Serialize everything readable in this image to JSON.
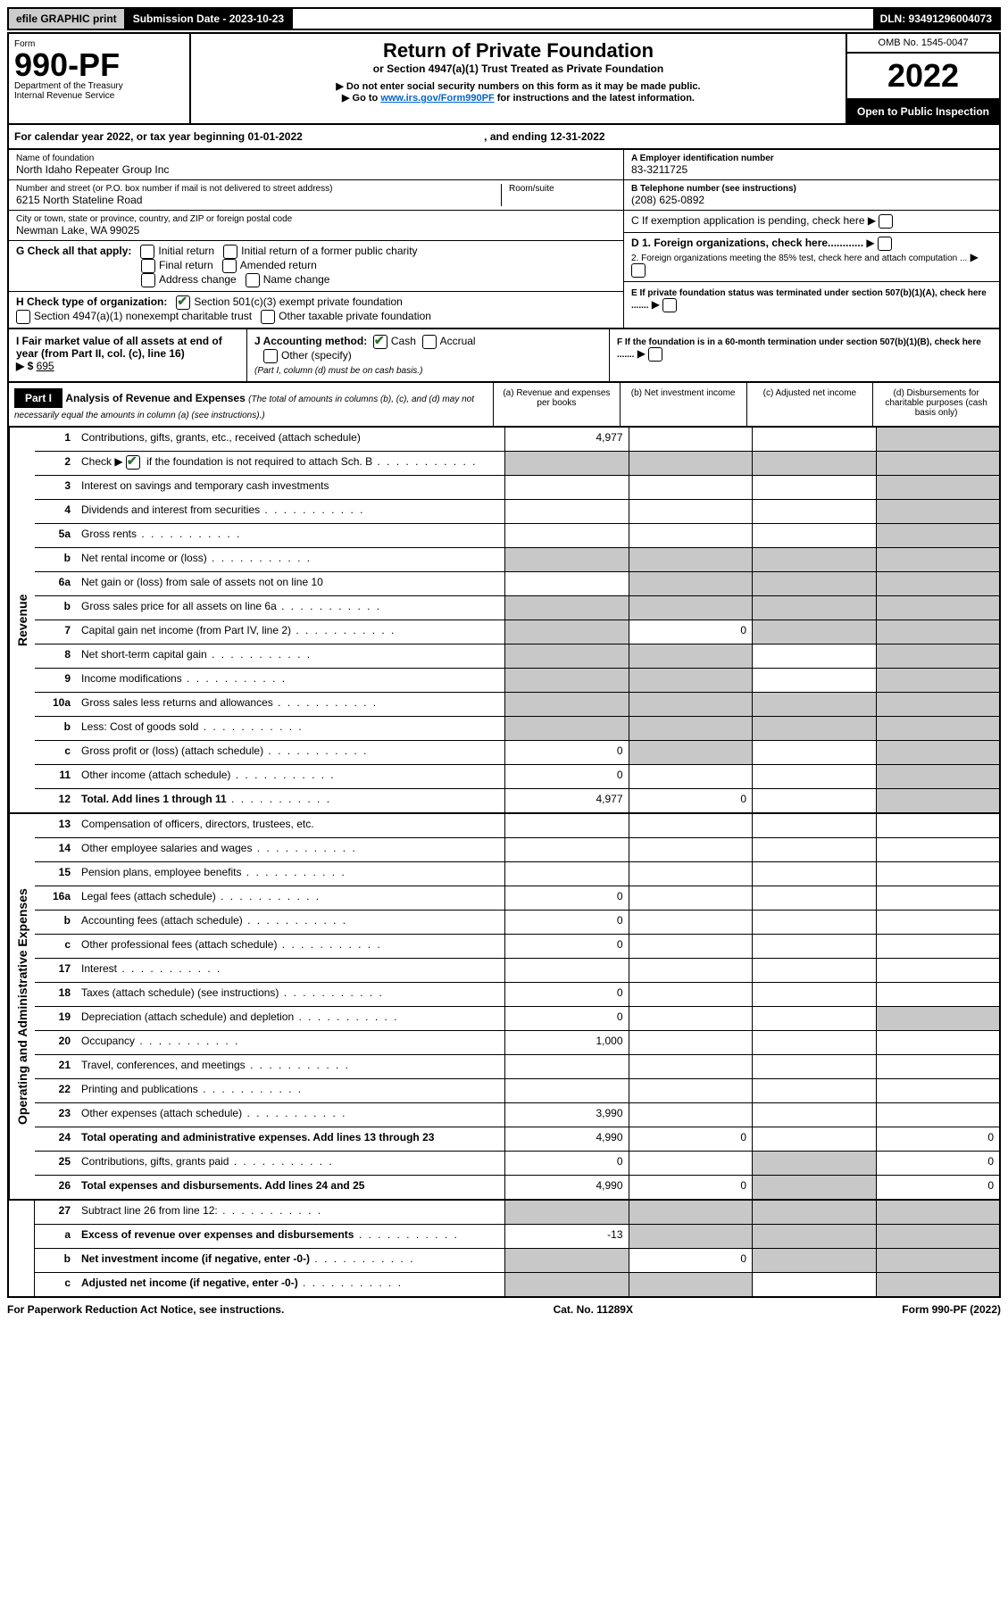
{
  "top_bar": {
    "efile": "efile GRAPHIC print",
    "submission_date_label": "Submission Date - 2023-10-23",
    "dln": "DLN: 93491296004073"
  },
  "header": {
    "form_label": "Form",
    "form_number": "990-PF",
    "dept": "Department of the Treasury",
    "irs": "Internal Revenue Service",
    "title": "Return of Private Foundation",
    "subtitle": "or Section 4947(a)(1) Trust Treated as Private Foundation",
    "note1": "▶ Do not enter social security numbers on this form as it may be made public.",
    "note2_prefix": "▶ Go to ",
    "note2_link": "www.irs.gov/Form990PF",
    "note2_suffix": " for instructions and the latest information.",
    "omb": "OMB No. 1545-0047",
    "tax_year": "2022",
    "open_inspection": "Open to Public Inspection"
  },
  "calendar_year": "For calendar year 2022, or tax year beginning 01-01-2022",
  "calendar_end": ", and ending 12-31-2022",
  "entity": {
    "name_label": "Name of foundation",
    "name": "North Idaho Repeater Group Inc",
    "street_label": "Number and street (or P.O. box number if mail is not delivered to street address)",
    "street": "6215 North Stateline Road",
    "room_label": "Room/suite",
    "city_label": "City or town, state or province, country, and ZIP or foreign postal code",
    "city": "Newman Lake, WA  99025",
    "ein_label": "A Employer identification number",
    "ein": "83-3211725",
    "phone_label": "B Telephone number (see instructions)",
    "phone": "(208) 625-0892",
    "c_label": "C If exemption application is pending, check here",
    "d1": "D 1. Foreign organizations, check here............",
    "d2": "2. Foreign organizations meeting the 85% test, check here and attach computation ...",
    "e": "E If private foundation status was terminated under section 507(b)(1)(A), check here .......",
    "f": "F If the foundation is in a 60-month termination under section 507(b)(1)(B), check here .......",
    "g_label": "G Check all that apply:",
    "g_opts": [
      "Initial return",
      "Initial return of a former public charity",
      "Final return",
      "Amended return",
      "Address change",
      "Name change"
    ],
    "h_label": "H Check type of organization:",
    "h_opt1": "Section 501(c)(3) exempt private foundation",
    "h_opt2": "Section 4947(a)(1) nonexempt charitable trust",
    "h_opt3": "Other taxable private foundation",
    "i_label": "I Fair market value of all assets at end of year (from Part II, col. (c), line 16)",
    "i_value": "695",
    "j_label": "J Accounting method:",
    "j_cash": "Cash",
    "j_accrual": "Accrual",
    "j_other": "Other (specify)",
    "j_note": "(Part I, column (d) must be on cash basis.)"
  },
  "part1": {
    "label": "Part I",
    "title": "Analysis of Revenue and Expenses",
    "title_note": "(The total of amounts in columns (b), (c), and (d) may not necessarily equal the amounts in column (a) (see instructions).)",
    "col_a": "(a) Revenue and expenses per books",
    "col_b": "(b) Net investment income",
    "col_c": "(c) Adjusted net income",
    "col_d": "(d) Disbursements for charitable purposes (cash basis only)"
  },
  "revenue_side": "Revenue",
  "expense_side": "Operating and Administrative Expenses",
  "rows": {
    "r1": {
      "num": "1",
      "label": "Contributions, gifts, grants, etc., received (attach schedule)",
      "a": "4,977"
    },
    "r2": {
      "num": "2",
      "label": "Check ▶",
      "suffix": "if the foundation is not required to attach Sch. B"
    },
    "r3": {
      "num": "3",
      "label": "Interest on savings and temporary cash investments"
    },
    "r4": {
      "num": "4",
      "label": "Dividends and interest from securities"
    },
    "r5a": {
      "num": "5a",
      "label": "Gross rents"
    },
    "r5b": {
      "num": "b",
      "label": "Net rental income or (loss)"
    },
    "r6a": {
      "num": "6a",
      "label": "Net gain or (loss) from sale of assets not on line 10"
    },
    "r6b": {
      "num": "b",
      "label": "Gross sales price for all assets on line 6a"
    },
    "r7": {
      "num": "7",
      "label": "Capital gain net income (from Part IV, line 2)",
      "b": "0"
    },
    "r8": {
      "num": "8",
      "label": "Net short-term capital gain"
    },
    "r9": {
      "num": "9",
      "label": "Income modifications"
    },
    "r10a": {
      "num": "10a",
      "label": "Gross sales less returns and allowances"
    },
    "r10b": {
      "num": "b",
      "label": "Less: Cost of goods sold"
    },
    "r10c": {
      "num": "c",
      "label": "Gross profit or (loss) (attach schedule)",
      "a": "0"
    },
    "r11": {
      "num": "11",
      "label": "Other income (attach schedule)",
      "a": "0"
    },
    "r12": {
      "num": "12",
      "label": "Total. Add lines 1 through 11",
      "a": "4,977",
      "b": "0"
    },
    "r13": {
      "num": "13",
      "label": "Compensation of officers, directors, trustees, etc."
    },
    "r14": {
      "num": "14",
      "label": "Other employee salaries and wages"
    },
    "r15": {
      "num": "15",
      "label": "Pension plans, employee benefits"
    },
    "r16a": {
      "num": "16a",
      "label": "Legal fees (attach schedule)",
      "a": "0"
    },
    "r16b": {
      "num": "b",
      "label": "Accounting fees (attach schedule)",
      "a": "0"
    },
    "r16c": {
      "num": "c",
      "label": "Other professional fees (attach schedule)",
      "a": "0"
    },
    "r17": {
      "num": "17",
      "label": "Interest"
    },
    "r18": {
      "num": "18",
      "label": "Taxes (attach schedule) (see instructions)",
      "a": "0"
    },
    "r19": {
      "num": "19",
      "label": "Depreciation (attach schedule) and depletion",
      "a": "0"
    },
    "r20": {
      "num": "20",
      "label": "Occupancy",
      "a": "1,000"
    },
    "r21": {
      "num": "21",
      "label": "Travel, conferences, and meetings"
    },
    "r22": {
      "num": "22",
      "label": "Printing and publications"
    },
    "r23": {
      "num": "23",
      "label": "Other expenses (attach schedule)",
      "a": "3,990"
    },
    "r24": {
      "num": "24",
      "label": "Total operating and administrative expenses. Add lines 13 through 23",
      "a": "4,990",
      "b": "0",
      "d": "0"
    },
    "r25": {
      "num": "25",
      "label": "Contributions, gifts, grants paid",
      "a": "0",
      "d": "0"
    },
    "r26": {
      "num": "26",
      "label": "Total expenses and disbursements. Add lines 24 and 25",
      "a": "4,990",
      "b": "0",
      "d": "0"
    },
    "r27": {
      "num": "27",
      "label": "Subtract line 26 from line 12:"
    },
    "r27a": {
      "num": "a",
      "label": "Excess of revenue over expenses and disbursements",
      "a": "-13"
    },
    "r27b": {
      "num": "b",
      "label": "Net investment income (if negative, enter -0-)",
      "b": "0"
    },
    "r27c": {
      "num": "c",
      "label": "Adjusted net income (if negative, enter -0-)"
    }
  },
  "footer": {
    "left": "For Paperwork Reduction Act Notice, see instructions.",
    "mid": "Cat. No. 11289X",
    "right": "Form 990-PF (2022)"
  },
  "colors": {
    "shaded": "#c8c8c8",
    "link": "#0066cc",
    "check_green": "#2a7030"
  }
}
